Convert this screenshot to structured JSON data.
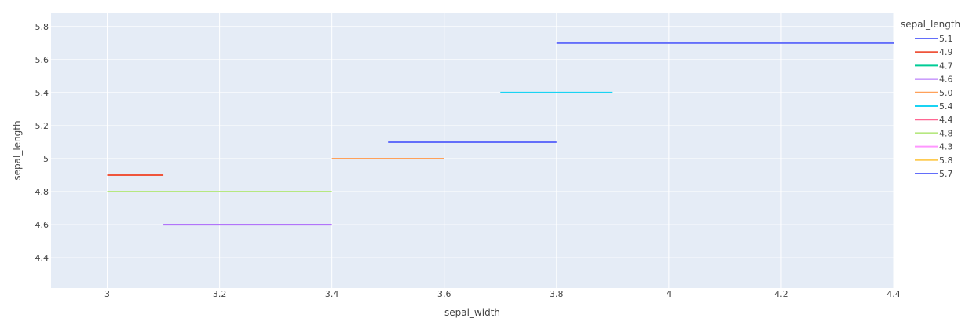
{
  "chart_data": {
    "type": "line",
    "title": "",
    "xlabel": "sepal_width",
    "ylabel": "sepal_length",
    "xlim": [
      2.9,
      4.4
    ],
    "ylim": [
      4.22,
      5.88
    ],
    "x_ticks": [
      3,
      3.2,
      3.4,
      3.6,
      3.8,
      4,
      4.2,
      4.4
    ],
    "x_tick_labels": [
      "3",
      "3.2",
      "3.4",
      "3.6",
      "3.8",
      "4",
      "4.2",
      "4.4"
    ],
    "y_ticks": [
      4.4,
      4.6,
      4.8,
      5,
      5.2,
      5.4,
      5.6,
      5.8
    ],
    "y_tick_labels": [
      "4.4",
      "4.6",
      "4.8",
      "5",
      "5.2",
      "5.4",
      "5.6",
      "5.8"
    ],
    "grid": true,
    "plot_background": "#e5ecf6",
    "legend": {
      "title": "sepal_length",
      "placement": "right"
    },
    "series": [
      {
        "name": "5.1",
        "color": "#636efa",
        "x": [
          3.5,
          3.8
        ],
        "y": [
          5.1,
          5.1
        ]
      },
      {
        "name": "4.9",
        "color": "#ef553b",
        "x": [
          3.0,
          3.1
        ],
        "y": [
          4.9,
          4.9
        ]
      },
      {
        "name": "4.7",
        "color": "#00cc96",
        "x": [],
        "y": []
      },
      {
        "name": "4.6",
        "color": "#ab63fa",
        "x": [
          3.1,
          3.4
        ],
        "y": [
          4.6,
          4.6
        ]
      },
      {
        "name": "5.0",
        "color": "#ffa15a",
        "x": [
          3.4,
          3.6
        ],
        "y": [
          5.0,
          5.0
        ]
      },
      {
        "name": "5.4",
        "color": "#19d3f3",
        "x": [
          3.7,
          3.9
        ],
        "y": [
          5.4,
          5.4
        ]
      },
      {
        "name": "4.4",
        "color": "#ff6692",
        "x": [],
        "y": []
      },
      {
        "name": "4.8",
        "color": "#b6e880",
        "x": [
          3.0,
          3.4
        ],
        "y": [
          4.8,
          4.8
        ]
      },
      {
        "name": "4.3",
        "color": "#ff97ff",
        "x": [],
        "y": []
      },
      {
        "name": "5.8",
        "color": "#fecb52",
        "x": [],
        "y": []
      },
      {
        "name": "5.7",
        "color": "#636efa",
        "x": [
          3.8,
          4.4
        ],
        "y": [
          5.7,
          5.7
        ]
      }
    ]
  }
}
